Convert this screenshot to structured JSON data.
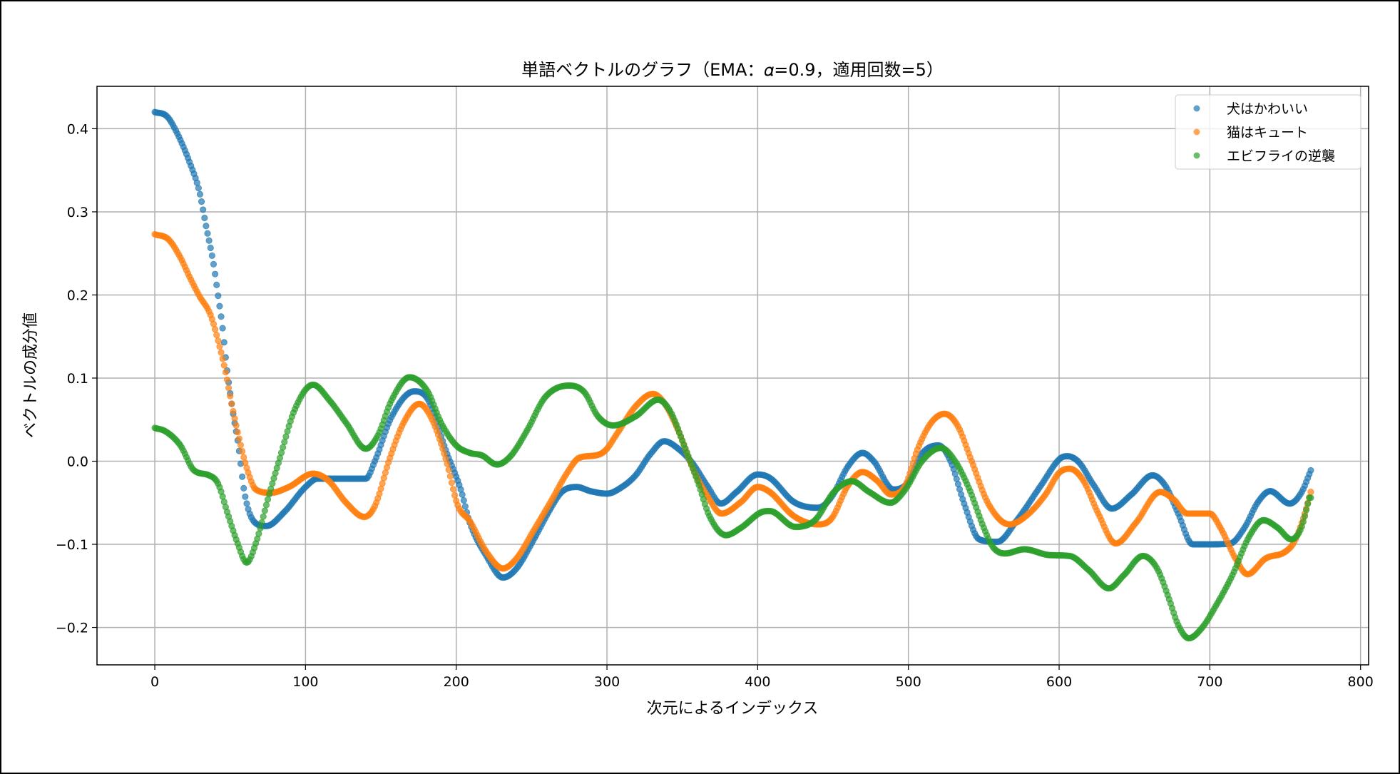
{
  "chart_data": {
    "type": "scatter",
    "title": "単語ベクトルのグラフ（EMA：𝛼=0.9，適用回数=5）",
    "xlabel": "次元によるインデックス",
    "ylabel": "ベクトルの成分値",
    "xlim": [
      -38.35,
      805.35
    ],
    "ylim": [
      -0.245,
      0.451
    ],
    "xticks": [
      0,
      100,
      200,
      300,
      400,
      500,
      600,
      700,
      800
    ],
    "xtick_labels": [
      "0",
      "100",
      "200",
      "300",
      "400",
      "500",
      "600",
      "700",
      "800"
    ],
    "yticks": [
      -0.2,
      -0.1,
      0.0,
      0.1,
      0.2,
      0.3,
      0.4
    ],
    "ytick_labels": [
      "−0.2",
      "−0.1",
      "0.0",
      "0.1",
      "0.2",
      "0.3",
      "0.4"
    ],
    "grid": true,
    "legend_position": "top-right",
    "x_range_of_points": [
      0,
      767
    ],
    "marker_alpha": 0.7,
    "series": [
      {
        "name": "犬はかわいい",
        "color": "#1f77b4",
        "points": [
          [
            0,
            0.42
          ],
          [
            8,
            0.415
          ],
          [
            15,
            0.394
          ],
          [
            23,
            0.36
          ],
          [
            29.5,
            0.325
          ],
          [
            34,
            0.283
          ],
          [
            39,
            0.237
          ],
          [
            42,
            0.199
          ],
          [
            45,
            0.16
          ],
          [
            47.6,
            0.115
          ],
          [
            52,
            0.057
          ],
          [
            55.5,
            0.019
          ],
          [
            59.5,
            -0.038
          ],
          [
            66,
            -0.073
          ],
          [
            74,
            -0.078
          ],
          [
            86,
            -0.061
          ],
          [
            100,
            -0.031
          ],
          [
            108,
            -0.021
          ],
          [
            140,
            -0.021
          ],
          [
            146,
            0
          ],
          [
            157,
            0.053
          ],
          [
            172,
            0.084
          ],
          [
            181,
            0.075
          ],
          [
            193.5,
            0.011
          ],
          [
            203,
            -0.034
          ],
          [
            209,
            -0.074
          ],
          [
            220,
            -0.114
          ],
          [
            231,
            -0.14
          ],
          [
            240,
            -0.129
          ],
          [
            251.5,
            -0.094
          ],
          [
            262.6,
            -0.057
          ],
          [
            270,
            -0.037
          ],
          [
            280,
            -0.031
          ],
          [
            289,
            -0.036
          ],
          [
            300,
            -0.039
          ],
          [
            310,
            -0.031
          ],
          [
            319,
            -0.017
          ],
          [
            329,
            0.009
          ],
          [
            338,
            0.024
          ],
          [
            348,
            0.014
          ],
          [
            357,
            -0.003
          ],
          [
            367,
            -0.031
          ],
          [
            375.5,
            -0.051
          ],
          [
            386,
            -0.037
          ],
          [
            400,
            -0.016
          ],
          [
            408,
            -0.02
          ],
          [
            424,
            -0.049
          ],
          [
            440,
            -0.056
          ],
          [
            449,
            -0.043
          ],
          [
            460,
            -0.006
          ],
          [
            469.6,
            0.01
          ],
          [
            477,
            0
          ],
          [
            490,
            -0.034
          ],
          [
            499.5,
            -0.026
          ],
          [
            509,
            0.009
          ],
          [
            520,
            0.019
          ],
          [
            528,
            0
          ],
          [
            537,
            -0.051
          ],
          [
            547,
            -0.094
          ],
          [
            559,
            -0.097
          ],
          [
            572,
            -0.071
          ],
          [
            588,
            -0.029
          ],
          [
            600.5,
            0.003
          ],
          [
            605.5,
            0.006
          ],
          [
            613,
            -0.001
          ],
          [
            623,
            -0.029
          ],
          [
            635,
            -0.057
          ],
          [
            648,
            -0.04
          ],
          [
            662,
            -0.017
          ],
          [
            671,
            -0.031
          ],
          [
            679,
            -0.063
          ],
          [
            688.6,
            -0.1
          ],
          [
            700,
            -0.1
          ],
          [
            713.6,
            -0.099
          ],
          [
            723,
            -0.08
          ],
          [
            732,
            -0.049
          ],
          [
            740,
            -0.036
          ],
          [
            753,
            -0.051
          ],
          [
            761,
            -0.037
          ],
          [
            767,
            -0.011
          ]
        ]
      },
      {
        "name": "猫はキュート",
        "color": "#ff7f0e",
        "points": [
          [
            0,
            0.273
          ],
          [
            9,
            0.267
          ],
          [
            17,
            0.245
          ],
          [
            23,
            0.222
          ],
          [
            29.5,
            0.199
          ],
          [
            37,
            0.176
          ],
          [
            42,
            0.145
          ],
          [
            47,
            0.107
          ],
          [
            51,
            0.069
          ],
          [
            55.5,
            0.031
          ],
          [
            61,
            -0.008
          ],
          [
            67,
            -0.034
          ],
          [
            77,
            -0.038
          ],
          [
            89,
            -0.031
          ],
          [
            105,
            -0.015
          ],
          [
            115,
            -0.023
          ],
          [
            127,
            -0.05
          ],
          [
            139,
            -0.067
          ],
          [
            146,
            -0.054
          ],
          [
            156,
            0.004
          ],
          [
            165,
            0.046
          ],
          [
            175.5,
            0.069
          ],
          [
            184,
            0.05
          ],
          [
            193.5,
            0
          ],
          [
            201,
            -0.053
          ],
          [
            209,
            -0.072
          ],
          [
            220,
            -0.109
          ],
          [
            231,
            -0.129
          ],
          [
            240,
            -0.117
          ],
          [
            251.5,
            -0.083
          ],
          [
            262.6,
            -0.049
          ],
          [
            273.6,
            -0.014
          ],
          [
            281.5,
            0.004
          ],
          [
            292.6,
            0.007
          ],
          [
            299,
            0.013
          ],
          [
            307,
            0.034
          ],
          [
            319,
            0.066
          ],
          [
            330.5,
            0.081
          ],
          [
            338,
            0.07
          ],
          [
            348,
            0.034
          ],
          [
            357,
            -0.009
          ],
          [
            367,
            -0.043
          ],
          [
            376,
            -0.063
          ],
          [
            389,
            -0.049
          ],
          [
            400,
            -0.031
          ],
          [
            408,
            -0.037
          ],
          [
            424,
            -0.066
          ],
          [
            440,
            -0.076
          ],
          [
            449,
            -0.069
          ],
          [
            460,
            -0.029
          ],
          [
            469.6,
            -0.013
          ],
          [
            479,
            -0.023
          ],
          [
            488.5,
            -0.04
          ],
          [
            498,
            -0.029
          ],
          [
            506,
            0.014
          ],
          [
            515,
            0.046
          ],
          [
            524,
            0.057
          ],
          [
            532.6,
            0.043
          ],
          [
            542,
            0
          ],
          [
            553,
            -0.051
          ],
          [
            567,
            -0.076
          ],
          [
            578,
            -0.066
          ],
          [
            591,
            -0.04
          ],
          [
            600,
            -0.014
          ],
          [
            607,
            -0.009
          ],
          [
            616,
            -0.023
          ],
          [
            626,
            -0.063
          ],
          [
            637.6,
            -0.099
          ],
          [
            651,
            -0.074
          ],
          [
            667,
            -0.037
          ],
          [
            676,
            -0.046
          ],
          [
            685,
            -0.063
          ],
          [
            700,
            -0.063
          ],
          [
            707,
            -0.08
          ],
          [
            717,
            -0.117
          ],
          [
            725,
            -0.136
          ],
          [
            737,
            -0.117
          ],
          [
            750,
            -0.109
          ],
          [
            756,
            -0.097
          ],
          [
            762,
            -0.069
          ],
          [
            767,
            -0.037
          ]
        ]
      },
      {
        "name": "エビフライの逆襲",
        "color": "#2ca02c",
        "points": [
          [
            0,
            0.04
          ],
          [
            7,
            0.036
          ],
          [
            17,
            0.019
          ],
          [
            26,
            -0.011
          ],
          [
            36,
            -0.017
          ],
          [
            42,
            -0.027
          ],
          [
            48,
            -0.061
          ],
          [
            55,
            -0.099
          ],
          [
            61,
            -0.122
          ],
          [
            67,
            -0.099
          ],
          [
            75,
            -0.046
          ],
          [
            83,
            0.004
          ],
          [
            92.6,
            0.061
          ],
          [
            105,
            0.092
          ],
          [
            116,
            0.073
          ],
          [
            127,
            0.046
          ],
          [
            140,
            0.015
          ],
          [
            148,
            0.031
          ],
          [
            157,
            0.073
          ],
          [
            169,
            0.101
          ],
          [
            181,
            0.084
          ],
          [
            190,
            0.046
          ],
          [
            200,
            0.019
          ],
          [
            209,
            0.01
          ],
          [
            217,
            0.007
          ],
          [
            227,
            -0.004
          ],
          [
            236,
            0.006
          ],
          [
            247,
            0.037
          ],
          [
            259,
            0.077
          ],
          [
            275,
            0.091
          ],
          [
            285,
            0.083
          ],
          [
            294,
            0.054
          ],
          [
            304,
            0.043
          ],
          [
            319,
            0.054
          ],
          [
            334,
            0.074
          ],
          [
            342,
            0.06
          ],
          [
            351,
            0.02
          ],
          [
            360.5,
            -0.026
          ],
          [
            368,
            -0.066
          ],
          [
            379,
            -0.089
          ],
          [
            389,
            -0.08
          ],
          [
            403,
            -0.061
          ],
          [
            408,
            -0.06
          ],
          [
            425,
            -0.079
          ],
          [
            438,
            -0.071
          ],
          [
            450.6,
            -0.037
          ],
          [
            462.5,
            -0.024
          ],
          [
            474,
            -0.037
          ],
          [
            488,
            -0.05
          ],
          [
            498,
            -0.034
          ],
          [
            509,
            0
          ],
          [
            521.6,
            0.016
          ],
          [
            531,
            0
          ],
          [
            540.5,
            -0.034
          ],
          [
            550,
            -0.08
          ],
          [
            556,
            -0.103
          ],
          [
            564,
            -0.111
          ],
          [
            577,
            -0.106
          ],
          [
            594,
            -0.113
          ],
          [
            607,
            -0.114
          ],
          [
            619.6,
            -0.131
          ],
          [
            633,
            -0.153
          ],
          [
            643,
            -0.137
          ],
          [
            655.6,
            -0.114
          ],
          [
            665,
            -0.129
          ],
          [
            673,
            -0.166
          ],
          [
            679,
            -0.197
          ],
          [
            686,
            -0.213
          ],
          [
            695,
            -0.2
          ],
          [
            704,
            -0.174
          ],
          [
            715,
            -0.137
          ],
          [
            726,
            -0.091
          ],
          [
            735.6,
            -0.071
          ],
          [
            745,
            -0.08
          ],
          [
            754,
            -0.094
          ],
          [
            760.7,
            -0.08
          ],
          [
            766,
            -0.044
          ]
        ]
      }
    ]
  }
}
